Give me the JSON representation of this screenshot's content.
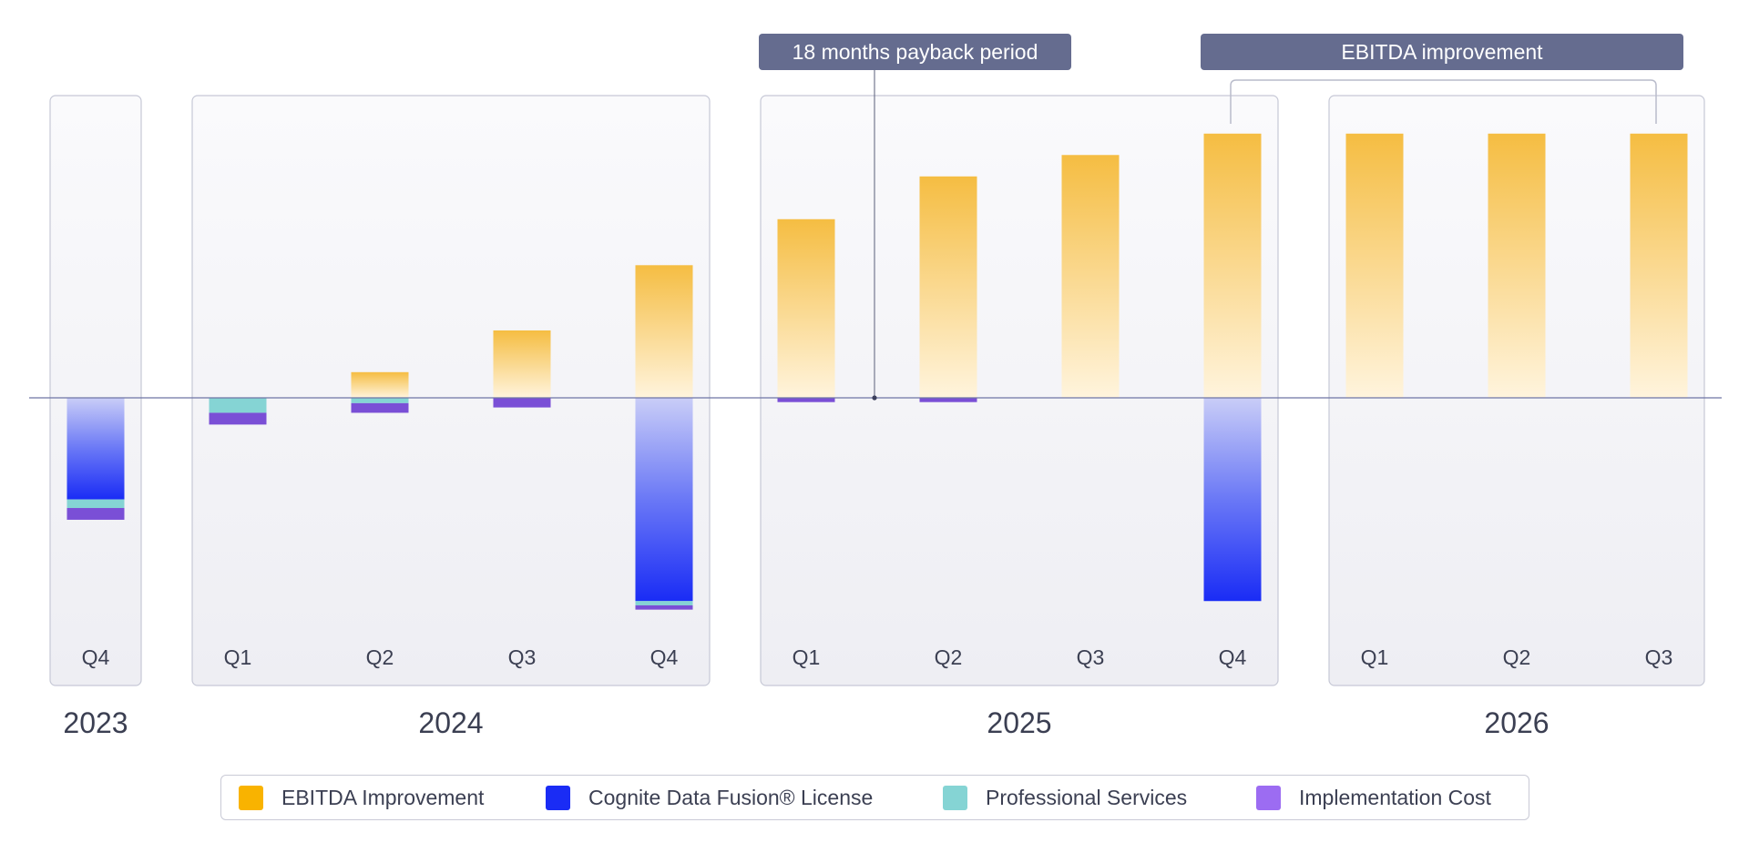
{
  "chart_data": {
    "type": "bar",
    "stacked": true,
    "groups": [
      {
        "year": "2023",
        "quarters": [
          "Q4"
        ]
      },
      {
        "year": "2024",
        "quarters": [
          "Q1",
          "Q2",
          "Q3",
          "Q4"
        ]
      },
      {
        "year": "2025",
        "quarters": [
          "Q1",
          "Q2",
          "Q3",
          "Q4"
        ]
      },
      {
        "year": "2026",
        "quarters": [
          "Q1",
          "Q2",
          "Q3"
        ]
      }
    ],
    "categories": [
      "Q4 2023",
      "Q1 2024",
      "Q2 2024",
      "Q3 2024",
      "Q4 2024",
      "Q1 2025",
      "Q2 2025",
      "Q3 2025",
      "Q4 2025",
      "Q1 2026",
      "Q2 2026",
      "Q3 2026"
    ],
    "series": [
      {
        "name": "EBITDA Improvement",
        "color": "#f5bd42",
        "values": [
          0,
          0,
          2.4,
          6.3,
          12.4,
          16.7,
          20.7,
          22.7,
          24.7,
          24.7,
          24.7,
          24.7
        ]
      },
      {
        "name": "Cognite Data Fusion® License",
        "color": "#1a2cf5",
        "values": [
          -9.5,
          0,
          0,
          0,
          -19.0,
          0,
          0,
          0,
          -19.0,
          0,
          0,
          0
        ]
      },
      {
        "name": "Professional Services",
        "color": "#85d4d4",
        "values": [
          -0.8,
          -1.4,
          -0.5,
          0,
          -0.4,
          0,
          0,
          0,
          0,
          0,
          0,
          0
        ]
      },
      {
        "name": "Implementation Cost",
        "color": "#7a4fd6",
        "values": [
          -1.1,
          -1.1,
          -0.9,
          -0.9,
          -0.4,
          -0.4,
          -0.4,
          0,
          0,
          0,
          0,
          0
        ]
      }
    ],
    "ylim": [
      -27,
      28
    ],
    "grid": false,
    "legend_position": "bottom",
    "annotations": [
      {
        "text": "18 months payback period",
        "at": "Q1 2025 – Q2 2025"
      },
      {
        "text": "EBITDA improvement",
        "span": "Q4 2025 – Q3 2026"
      }
    ]
  },
  "legend": [
    {
      "label": "EBITDA Improvement",
      "color": "#f9b300"
    },
    {
      "label": "Cognite Data Fusion® License",
      "color": "#1a2cf5"
    },
    {
      "label": "Professional Services",
      "color": "#85d4d4"
    },
    {
      "label": "Implementation Cost",
      "color": "#9c6cf2"
    }
  ],
  "callouts": {
    "payback": "18 months payback period",
    "ebitda": "EBITDA improvement"
  }
}
